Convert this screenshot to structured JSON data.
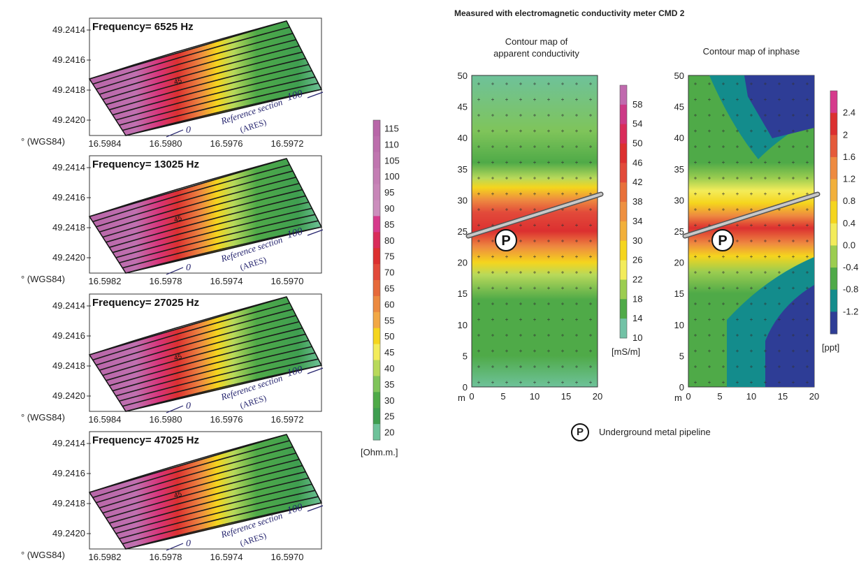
{
  "frequency_panels": [
    {
      "title": "Frequency= 6525 Hz",
      "lat_ticks": [
        "49.2414",
        "49.2416",
        "49.2418",
        "49.2420"
      ],
      "lon_ticks": [
        "16.5984",
        "16.5980",
        "16.5976",
        "16.5972"
      ],
      "unit_label": "° (WGS84)",
      "contour_label": "45",
      "reference_section": {
        "text": "Reference section",
        "sub": "(ARES)",
        "start": "0",
        "end": "100"
      }
    },
    {
      "title": "Frequency= 13025 Hz",
      "lat_ticks": [
        "49.2414",
        "49.2416",
        "49.2418",
        "49.2420"
      ],
      "lon_ticks": [
        "16.5982",
        "16.5978",
        "16.5974",
        "16.5970"
      ],
      "unit_label": "° (WGS84)",
      "contour_label": "45",
      "reference_section": {
        "text": "Reference section",
        "sub": "(ARES)",
        "start": "0",
        "end": "100"
      }
    },
    {
      "title": "Frequency= 27025 Hz",
      "lat_ticks": [
        "49.2414",
        "49.2416",
        "49.2418",
        "49.2420"
      ],
      "lon_ticks": [
        "16.5984",
        "16.5980",
        "16.5976",
        "16.5972"
      ],
      "unit_label": "° (WGS84)",
      "contour_label": "45",
      "reference_section": {
        "text": "Reference section",
        "sub": "(ARES)",
        "start": "0",
        "end": "100"
      }
    },
    {
      "title": "Frequency= 47025 Hz",
      "lat_ticks": [
        "49.2414",
        "49.2416",
        "49.2418",
        "49.2420"
      ],
      "lon_ticks": [
        "16.5982",
        "16.5978",
        "16.5974",
        "16.5970"
      ],
      "unit_label": "° (WGS84)",
      "contour_label": "45",
      "reference_section": {
        "text": "Reference section",
        "sub": "(ARES)",
        "start": "0",
        "end": "100"
      }
    }
  ],
  "resistivity_scale": {
    "unit": "[Ohm.m.]",
    "labels": [
      "115",
      "110",
      "105",
      "100",
      "95",
      "90",
      "85",
      "80",
      "75",
      "70",
      "65",
      "60",
      "55",
      "50",
      "45",
      "40",
      "35",
      "30",
      "25",
      "20"
    ],
    "colors": [
      "#b866a8",
      "#bc6eac",
      "#c076b0",
      "#c47eb4",
      "#c886b8",
      "#cc8ebd",
      "#d63a8c",
      "#d92c5a",
      "#dc3030",
      "#e24a3a",
      "#e66a3a",
      "#ec8a40",
      "#f2a845",
      "#f5d51d",
      "#f3ec5a",
      "#b8d95a",
      "#7fc45a",
      "#4faa48",
      "#3f9e50",
      "#6ec29a"
    ]
  },
  "cmd": {
    "header": "Measured with electromagnetic conductivity meter CMD 2",
    "conductivity": {
      "title_line1": "Contour map of",
      "title_line2": "apparent conductivity",
      "y_ticks": [
        "50",
        "45",
        "40",
        "35",
        "30",
        "25",
        "20",
        "15",
        "10",
        "5",
        "0"
      ],
      "x_ticks": [
        "0",
        "5",
        "10",
        "15",
        "20"
      ],
      "axis_unit": "m",
      "scale_labels": [
        "58",
        "54",
        "50",
        "46",
        "42",
        "38",
        "34",
        "30",
        "26",
        "22",
        "18",
        "14",
        "10"
      ],
      "scale_colors": [
        "#c06aae",
        "#cc3a86",
        "#d92c5a",
        "#dc3030",
        "#e24a3a",
        "#e8703a",
        "#ee9040",
        "#f2b03a",
        "#f5d51d",
        "#f3ec5a",
        "#9ccd50",
        "#4faa48",
        "#72c2a6"
      ],
      "scale_unit": "[mS/m]",
      "marker": "P"
    },
    "inphase": {
      "title": "Contour map of inphase",
      "y_ticks": [
        "50",
        "45",
        "40",
        "35",
        "30",
        "25",
        "20",
        "15",
        "10",
        "5",
        "0"
      ],
      "x_ticks": [
        "0",
        "5",
        "10",
        "15",
        "20"
      ],
      "axis_unit": "m",
      "scale_labels": [
        "2.4",
        "2",
        "1.6",
        "1.2",
        "0.8",
        "0.4",
        "0.0",
        "-0.4",
        "-0.8",
        "-1.2"
      ],
      "scale_colors": [
        "#d63a8c",
        "#dc3030",
        "#e55a3a",
        "#ee8a40",
        "#f2b03a",
        "#f5d51d",
        "#f3ec5a",
        "#9ccd50",
        "#4faa48",
        "#138c8c",
        "#2e3d96"
      ],
      "scale_unit": "[ppt]",
      "marker": "P"
    },
    "legend": {
      "symbol": "P",
      "text": "Underground metal pipeline"
    }
  }
}
